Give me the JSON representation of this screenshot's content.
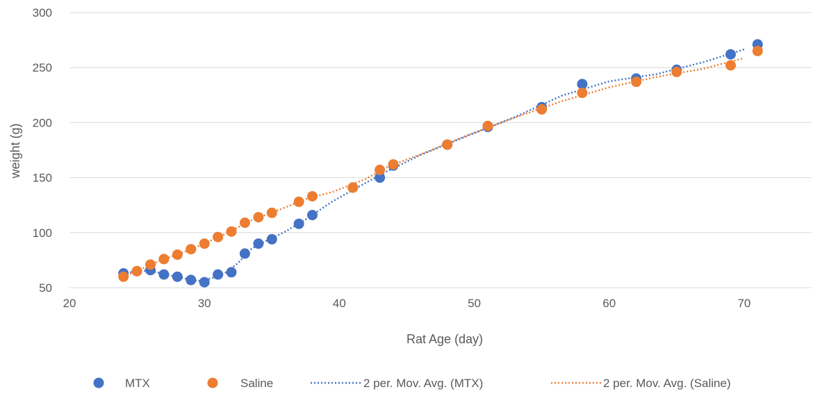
{
  "chart_data": {
    "type": "scatter",
    "xlabel": "Rat Age (day)",
    "ylabel": "weight (g)",
    "xlim": [
      20,
      75
    ],
    "ylim": [
      50,
      300
    ],
    "xticks": [
      20,
      30,
      40,
      50,
      60,
      70
    ],
    "yticks": [
      50,
      100,
      150,
      200,
      250,
      300
    ],
    "grid": "horizontal",
    "legend_position": "bottom",
    "series": [
      {
        "name": "MTX",
        "kind": "points",
        "color": "#4472C4",
        "x": [
          24,
          25,
          26,
          27,
          28,
          29,
          30,
          31,
          32,
          33,
          34,
          35,
          37,
          38,
          41,
          43,
          44,
          48,
          51,
          55,
          58,
          62,
          65,
          69,
          71
        ],
        "y": [
          63,
          65,
          66,
          62,
          60,
          57,
          55,
          62,
          64,
          81,
          90,
          94,
          108,
          116,
          141,
          150,
          161,
          180,
          196,
          214,
          235,
          240,
          248,
          262,
          271
        ]
      },
      {
        "name": "Saline",
        "kind": "points",
        "color": "#ED7D31",
        "x": [
          24,
          25,
          26,
          27,
          28,
          29,
          30,
          31,
          32,
          33,
          34,
          35,
          37,
          38,
          41,
          43,
          44,
          48,
          51,
          55,
          58,
          62,
          65,
          69,
          71
        ],
        "y": [
          60,
          65,
          71,
          76,
          80,
          85,
          90,
          96,
          101,
          109,
          114,
          118,
          128,
          133,
          141,
          157,
          162,
          180,
          197,
          212,
          227,
          237,
          246,
          252,
          265
        ]
      },
      {
        "name": "2 per. Mov. Avg. (MTX)",
        "kind": "trend",
        "color": "#4472C4",
        "source": 0
      },
      {
        "name": "2 per. Mov. Avg. (Saline)",
        "kind": "trend",
        "color": "#ED7D31",
        "source": 1
      }
    ]
  }
}
